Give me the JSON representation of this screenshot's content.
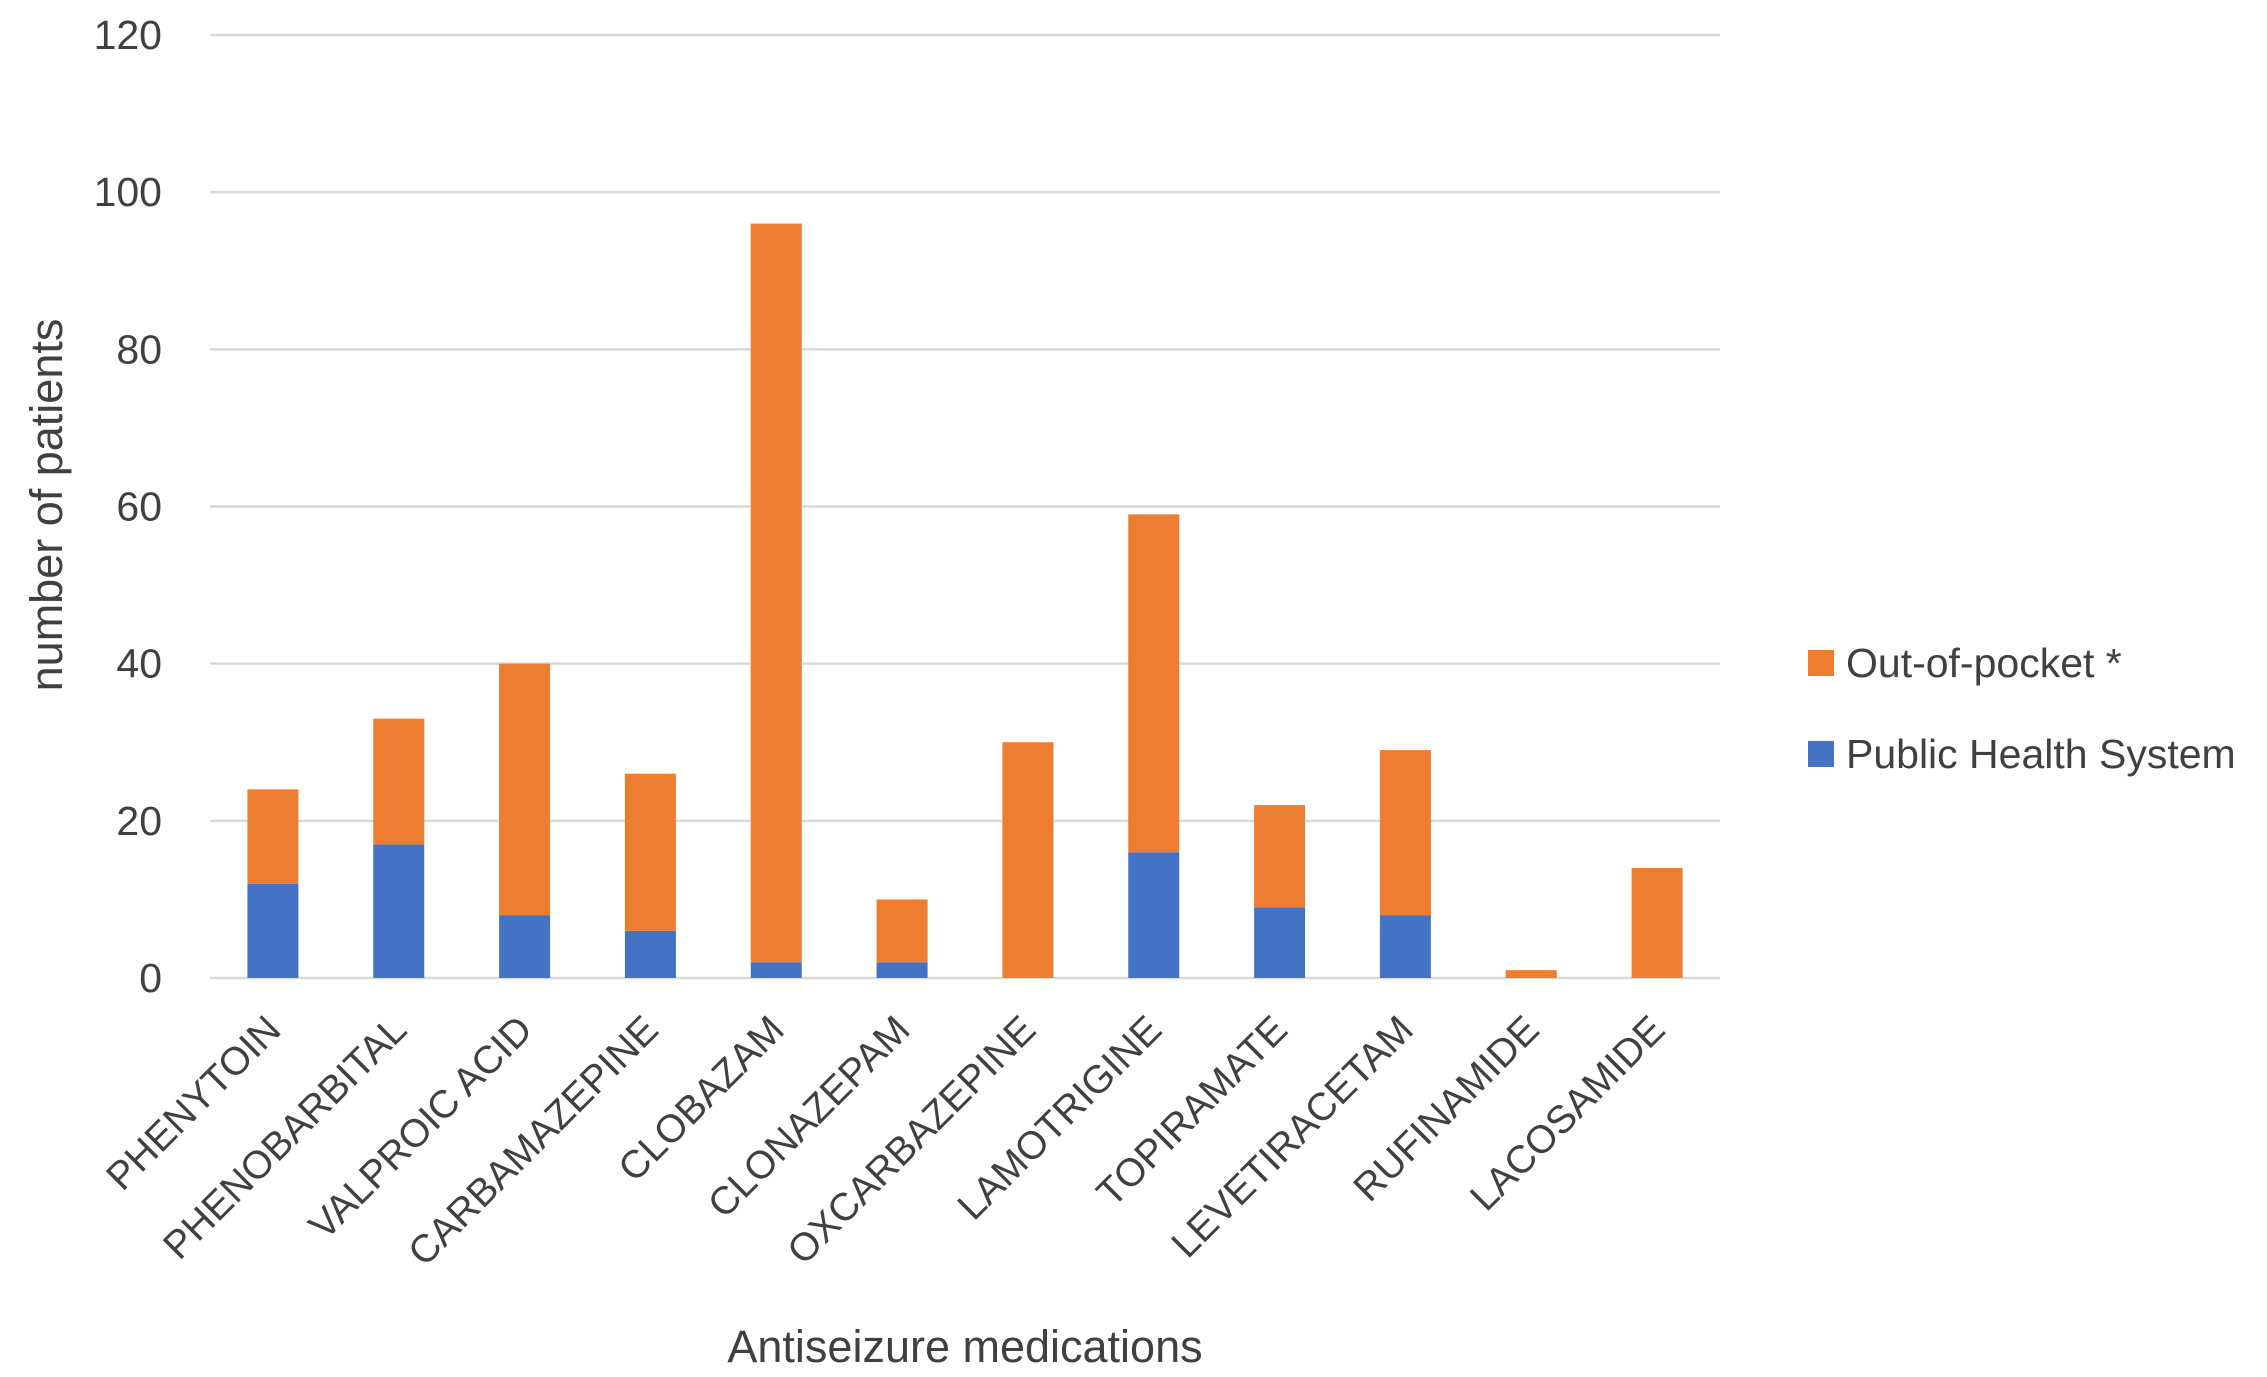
{
  "chart_data": {
    "type": "bar",
    "stacked": true,
    "title": "",
    "xlabel": "Antiseizure medications",
    "ylabel": "number of patients",
    "ylim": [
      0,
      120
    ],
    "yticks": [
      0,
      20,
      40,
      60,
      80,
      100,
      120
    ],
    "grid": true,
    "legend_position": "right",
    "categories": [
      "PHENYTOIN",
      "PHENOBARBITAL",
      "VALPROIC ACID",
      "CARBAMAZEPINE",
      "CLOBAZAM",
      "CLONAZEPAM",
      "OXCARBAZEPINE",
      "LAMOTRIGINE",
      "TOPIRAMATE",
      "LEVETIRACETAM",
      "RUFINAMIDE",
      "LACOSAMIDE"
    ],
    "series": [
      {
        "name": "Public Health System",
        "color": "#4472c4",
        "values": [
          12,
          17,
          8,
          6,
          2,
          2,
          0,
          16,
          9,
          8,
          0,
          0
        ]
      },
      {
        "name": "Out-of-pocket *",
        "color": "#ed7d31",
        "values": [
          12,
          16,
          32,
          20,
          94,
          8,
          30,
          43,
          13,
          21,
          1,
          14
        ]
      }
    ],
    "legend_order": [
      "Out-of-pocket *",
      "Public Health System"
    ]
  }
}
